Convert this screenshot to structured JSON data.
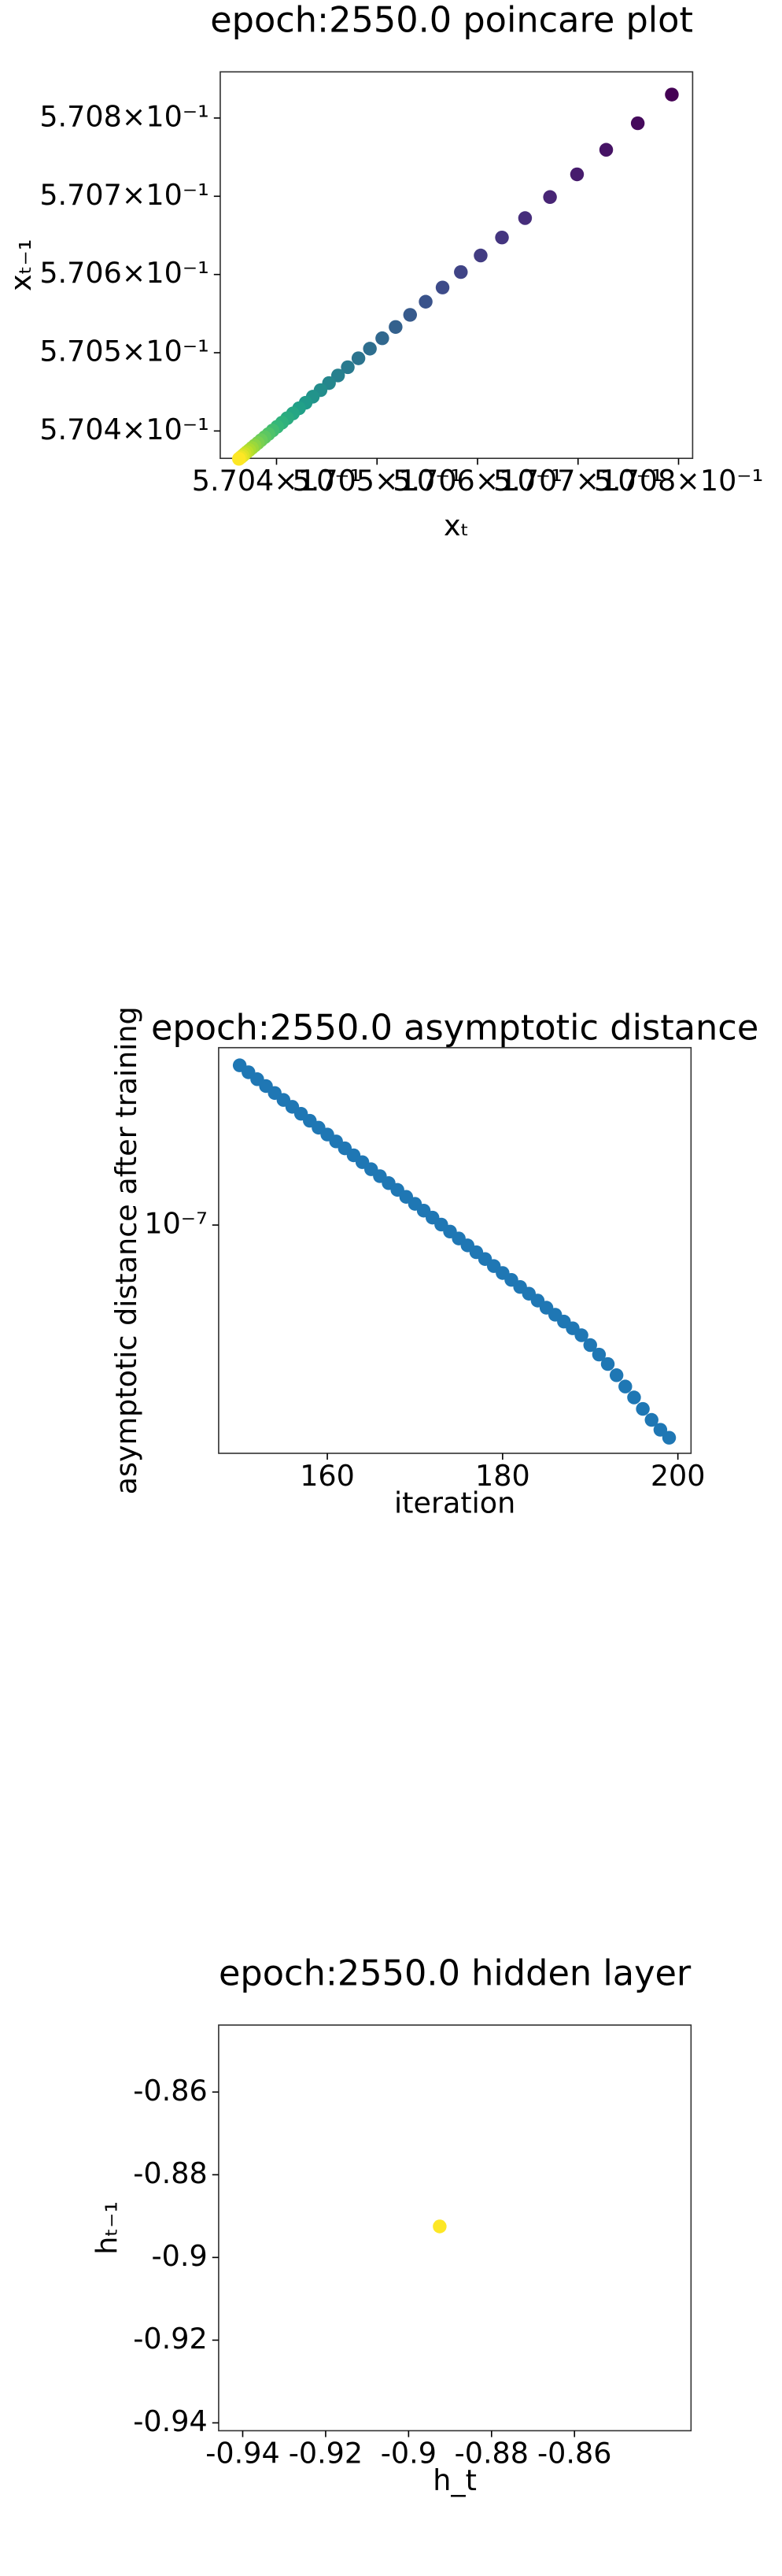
{
  "chart_data": [
    {
      "type": "scatter",
      "title": "epoch:2550.0 poincare plot",
      "xlabel": "xₜ",
      "ylabel": "xₜ₋₁",
      "colormap": "viridis",
      "x": [
        0.5707933,
        0.5707594,
        0.570728,
        0.570699,
        0.5706721,
        0.5706473,
        0.5706243,
        0.5706031,
        0.5705834,
        0.5705652,
        0.5705484,
        0.5705329,
        0.5705185,
        0.5705052,
        0.5704929,
        0.5704815,
        0.5704709,
        0.5704612,
        0.5704522,
        0.5704438,
        0.5704361,
        0.570429,
        0.5704224,
        0.5704163,
        0.5704106,
        0.5704054,
        0.5704006,
        0.5703961,
        0.570392,
        0.5703882,
        0.5703846,
        0.5703814,
        0.5703783,
        0.5703755,
        0.5703729,
        0.5703705,
        0.5703683,
        0.5703663,
        0.5703644,
        0.5703626
      ],
      "y": [
        0.57083,
        0.5707933,
        0.5707594,
        0.570728,
        0.570699,
        0.5706721,
        0.5706473,
        0.5706243,
        0.5706031,
        0.5705834,
        0.5705652,
        0.5705484,
        0.5705329,
        0.5705185,
        0.5705052,
        0.5704929,
        0.5704815,
        0.5704709,
        0.5704612,
        0.5704522,
        0.5704438,
        0.5704361,
        0.570429,
        0.5704224,
        0.5704163,
        0.5704106,
        0.5704054,
        0.5704006,
        0.5703961,
        0.570392,
        0.5703882,
        0.5703846,
        0.5703814,
        0.5703783,
        0.5703755,
        0.5703729,
        0.5703705,
        0.5703683,
        0.5703663,
        0.5703644
      ],
      "xlim": [
        0.570344,
        0.570814
      ],
      "ylim": [
        0.570365,
        0.570859
      ],
      "xticks": [
        {
          "value": 0.5704,
          "label": "5.704×10⁻¹"
        },
        {
          "value": 0.5705,
          "label": "5.705×10⁻¹"
        },
        {
          "value": 0.5706,
          "label": "5.706×10⁻¹"
        },
        {
          "value": 0.5707,
          "label": "5.707×10⁻¹"
        },
        {
          "value": 0.5708,
          "label": "5.708×10⁻¹"
        }
      ],
      "yticks": [
        {
          "value": 0.5704,
          "label": "5.704×10⁻¹"
        },
        {
          "value": 0.5705,
          "label": "5.705×10⁻¹"
        },
        {
          "value": 0.5706,
          "label": "5.706×10⁻¹"
        },
        {
          "value": 0.5707,
          "label": "5.707×10⁻¹"
        },
        {
          "value": 0.5708,
          "label": "5.708×10⁻¹"
        }
      ]
    },
    {
      "type": "scatter",
      "title": "epoch:2550.0 asymptotic distance",
      "xlabel": "iteration",
      "ylabel": "asymptotic distance after training",
      "color": "#1f77b4",
      "yscale": "log",
      "x": [
        150,
        151,
        152,
        153,
        154,
        155,
        156,
        157,
        158,
        159,
        160,
        161,
        162,
        163,
        164,
        165,
        166,
        167,
        168,
        169,
        170,
        171,
        172,
        173,
        174,
        175,
        176,
        177,
        178,
        179,
        180,
        181,
        182,
        183,
        184,
        185,
        186,
        187,
        188,
        189,
        190,
        191,
        192,
        193,
        194,
        195,
        196,
        197,
        198,
        199
      ],
      "y": [
        2.009e-07,
        1.949e-07,
        1.891e-07,
        1.835e-07,
        1.78e-07,
        1.727e-07,
        1.676e-07,
        1.626e-07,
        1.577e-07,
        1.53e-07,
        1.485e-07,
        1.441e-07,
        1.398e-07,
        1.356e-07,
        1.316e-07,
        1.276e-07,
        1.238e-07,
        1.201e-07,
        1.166e-07,
        1.131e-07,
        1.097e-07,
        1.065e-07,
        1.033e-07,
        1.002e-07,
        9.72e-08,
        9.43e-08,
        9.15e-08,
        8.88e-08,
        8.62e-08,
        8.36e-08,
        8.11e-08,
        7.87e-08,
        7.63e-08,
        7.41e-08,
        7.19e-08,
        6.97e-08,
        6.76e-08,
        6.56e-08,
        6.37e-08,
        6.18e-08,
        5.92e-08,
        5.68e-08,
        5.45e-08,
        5.19e-08,
        4.94e-08,
        4.71e-08,
        4.48e-08,
        4.27e-08,
        4.09e-08,
        3.95e-08
      ],
      "xlim": [
        147.6,
        201.5
      ],
      "ylim": [
        3.69e-08,
        2.17e-07
      ],
      "xticks": [
        160,
        180,
        200
      ],
      "yticks": [
        {
          "value": 1e-07,
          "label": "10⁻⁷"
        }
      ]
    },
    {
      "type": "scatter",
      "title": "epoch:2550.0 hidden layer",
      "xlabel": "h_t",
      "ylabel": "hₜ₋₁",
      "color": "#fde725",
      "x": [
        -0.8925
      ],
      "y": [
        -0.8925
      ],
      "xlim": [
        -0.9458,
        -0.8319
      ],
      "ylim": [
        -0.9419,
        -0.8438
      ],
      "xticks": [
        -0.94,
        -0.92,
        -0.9,
        -0.88,
        -0.86
      ],
      "yticks": [
        -0.86,
        -0.88,
        -0.9,
        -0.92,
        -0.94
      ]
    }
  ]
}
